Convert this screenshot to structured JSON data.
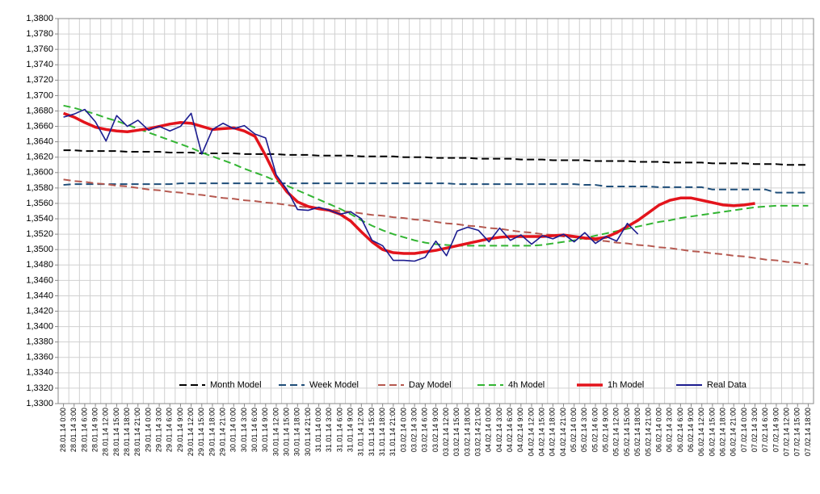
{
  "chart_data": {
    "type": "line",
    "categories": [
      "28.01.14 0:00",
      "28.01.14 3:00",
      "28.01.14 6:00",
      "28.01.14 9:00",
      "28.01.14 12:00",
      "28.01.14 15:00",
      "28.01.14 18:00",
      "28.01.14 21:00",
      "29.01.14 0:00",
      "29.01.14 3:00",
      "29.01.14 6:00",
      "29.01.14 9:00",
      "29.01.14 12:00",
      "29.01.14 15:00",
      "29.01.14 18:00",
      "29.01.14 21:00",
      "30.01.14 0:00",
      "30.01.14 3:00",
      "30.01.14 6:00",
      "30.01.14 9:00",
      "30.01.14 12:00",
      "30.01.14 15:00",
      "30.01.14 18:00",
      "30.01.14 21:00",
      "31.01.14 0:00",
      "31.01.14 3:00",
      "31.01.14 6:00",
      "31.01.14 9:00",
      "31.01.14 12:00",
      "31.01.14 15:00",
      "31.01.14 18:00",
      "31.01.14 21:00",
      "03.02.14 0:00",
      "03.02.14 3:00",
      "03.02.14 6:00",
      "03.02.14 9:00",
      "03.02.14 12:00",
      "03.02.14 15:00",
      "03.02.14 18:00",
      "03.02.14 21:00",
      "04.02.14 0:00",
      "04.02.14 3:00",
      "04.02.14 6:00",
      "04.02.14 9:00",
      "04.02.14 12:00",
      "04.02.14 15:00",
      "04.02.14 18:00",
      "04.02.14 21:00",
      "05.02.14 0:00",
      "05.02.14 3:00",
      "05.02.14 6:00",
      "05.02.14 9:00",
      "05.02.14 12:00",
      "05.02.14 15:00",
      "05.02.14 18:00",
      "05.02.14 21:00",
      "06.02.14 0:00",
      "06.02.14 3:00",
      "06.02.14 6:00",
      "06.02.14 9:00",
      "06.02.14 12:00",
      "06.02.14 15:00",
      "06.02.14 18:00",
      "06.02.14 21:00",
      "07.02.14 0:00",
      "07.02.14 3:00",
      "07.02.14 6:00",
      "07.02.14 9:00",
      "07.02.14 12:00",
      "07.02.14 15:00",
      "07.02.14 18:00"
    ],
    "ylim": [
      1.33,
      1.38
    ],
    "yticks": [
      {
        "value": 1.33,
        "label": "1,3300"
      },
      {
        "value": 1.332,
        "label": "1,3320"
      },
      {
        "value": 1.334,
        "label": "1,3340"
      },
      {
        "value": 1.336,
        "label": "1,3360"
      },
      {
        "value": 1.338,
        "label": "1,3380"
      },
      {
        "value": 1.34,
        "label": "1,3400"
      },
      {
        "value": 1.342,
        "label": "1,3420"
      },
      {
        "value": 1.344,
        "label": "1,3440"
      },
      {
        "value": 1.346,
        "label": "1,3460"
      },
      {
        "value": 1.348,
        "label": "1,3480"
      },
      {
        "value": 1.35,
        "label": "1,3500"
      },
      {
        "value": 1.352,
        "label": "1,3520"
      },
      {
        "value": 1.354,
        "label": "1,3540"
      },
      {
        "value": 1.356,
        "label": "1,3560"
      },
      {
        "value": 1.358,
        "label": "1,3580"
      },
      {
        "value": 1.36,
        "label": "1,3600"
      },
      {
        "value": 1.362,
        "label": "1,3620"
      },
      {
        "value": 1.364,
        "label": "1,3640"
      },
      {
        "value": 1.366,
        "label": "1,3660"
      },
      {
        "value": 1.368,
        "label": "1,3680"
      },
      {
        "value": 1.37,
        "label": "1,3700"
      },
      {
        "value": 1.372,
        "label": "1,3720"
      },
      {
        "value": 1.374,
        "label": "1,3740"
      },
      {
        "value": 1.376,
        "label": "1,3760"
      },
      {
        "value": 1.378,
        "label": "1,3780"
      },
      {
        "value": 1.38,
        "label": "1,3800"
      }
    ],
    "grid": true,
    "legend": "bottom",
    "series": [
      {
        "name": "Month Model",
        "color": "#000000",
        "dashed": true,
        "values": [
          1.3629,
          1.3629,
          1.3628,
          1.3628,
          1.3628,
          1.3628,
          1.3627,
          1.3627,
          1.3627,
          1.3627,
          1.3626,
          1.3626,
          1.3626,
          1.3625,
          1.3625,
          1.3625,
          1.3625,
          1.3624,
          1.3624,
          1.3624,
          1.3624,
          1.3623,
          1.3623,
          1.3623,
          1.3622,
          1.3622,
          1.3622,
          1.3622,
          1.3621,
          1.3621,
          1.3621,
          1.3621,
          1.362,
          1.362,
          1.362,
          1.3619,
          1.3619,
          1.3619,
          1.3619,
          1.3618,
          1.3618,
          1.3618,
          1.3618,
          1.3617,
          1.3617,
          1.3617,
          1.3616,
          1.3616,
          1.3616,
          1.3616,
          1.3615,
          1.3615,
          1.3615,
          1.3615,
          1.3614,
          1.3614,
          1.3614,
          1.3613,
          1.3613,
          1.3613,
          1.3613,
          1.3612,
          1.3612,
          1.3612,
          1.3612,
          1.3611,
          1.3611,
          1.3611,
          1.361,
          1.361,
          1.361
        ]
      },
      {
        "name": "Week Model",
        "color": "#1f4e79",
        "dashed": true,
        "values": [
          1.3584,
          1.3585,
          1.3585,
          1.3585,
          1.3585,
          1.3585,
          1.3585,
          1.3585,
          1.3585,
          1.3585,
          1.3585,
          1.3586,
          1.3586,
          1.3586,
          1.3586,
          1.3586,
          1.3586,
          1.3586,
          1.3586,
          1.3586,
          1.3586,
          1.3586,
          1.3586,
          1.3586,
          1.3586,
          1.3586,
          1.3586,
          1.3586,
          1.3586,
          1.3586,
          1.3586,
          1.3586,
          1.3586,
          1.3586,
          1.3586,
          1.3586,
          1.3586,
          1.3585,
          1.3585,
          1.3585,
          1.3585,
          1.3585,
          1.3585,
          1.3585,
          1.3585,
          1.3585,
          1.3585,
          1.3585,
          1.3585,
          1.3584,
          1.3584,
          1.3582,
          1.3582,
          1.3582,
          1.3582,
          1.3582,
          1.3581,
          1.3581,
          1.3581,
          1.3581,
          1.3581,
          1.3578,
          1.3578,
          1.3578,
          1.3578,
          1.3578,
          1.3578,
          1.3574,
          1.3574,
          1.3574,
          1.3574
        ]
      },
      {
        "name": "Day Model",
        "color": "#b5584f",
        "dashed": true,
        "values": [
          1.3591,
          1.3589,
          1.3588,
          1.3586,
          1.3585,
          1.3583,
          1.3582,
          1.358,
          1.3578,
          1.3577,
          1.3575,
          1.3574,
          1.3572,
          1.3571,
          1.3569,
          1.3567,
          1.3566,
          1.3564,
          1.3563,
          1.3561,
          1.356,
          1.3558,
          1.3556,
          1.3555,
          1.3553,
          1.3552,
          1.355,
          1.3549,
          1.3547,
          1.3545,
          1.3544,
          1.3542,
          1.3541,
          1.3539,
          1.3538,
          1.3536,
          1.3534,
          1.3533,
          1.3531,
          1.353,
          1.3528,
          1.3527,
          1.3525,
          1.3523,
          1.3522,
          1.352,
          1.3519,
          1.3517,
          1.3516,
          1.3514,
          1.3512,
          1.3511,
          1.3509,
          1.3508,
          1.3506,
          1.3505,
          1.3503,
          1.3502,
          1.35,
          1.3498,
          1.3497,
          1.3495,
          1.3494,
          1.3492,
          1.3491,
          1.3489,
          1.3487,
          1.3486,
          1.3484,
          1.3483,
          1.3481
        ]
      },
      {
        "name": "4h Model",
        "color": "#33b533",
        "dashed": true,
        "values": [
          1.3687,
          1.3684,
          1.368,
          1.3676,
          1.3671,
          1.3667,
          1.3662,
          1.3657,
          1.3652,
          1.3647,
          1.3642,
          1.3637,
          1.3632,
          1.3626,
          1.3621,
          1.3616,
          1.3611,
          1.3605,
          1.36,
          1.3595,
          1.3589,
          1.3583,
          1.3577,
          1.3571,
          1.3565,
          1.3559,
          1.3553,
          1.3546,
          1.3538,
          1.3531,
          1.3525,
          1.352,
          1.3516,
          1.3512,
          1.3509,
          1.3507,
          1.3506,
          1.3505,
          1.3505,
          1.3505,
          1.3505,
          1.3505,
          1.3505,
          1.3505,
          1.3505,
          1.3506,
          1.3508,
          1.351,
          1.3512,
          1.3515,
          1.3518,
          1.3521,
          1.3524,
          1.3527,
          1.353,
          1.3533,
          1.3536,
          1.3538,
          1.3541,
          1.3543,
          1.3545,
          1.3547,
          1.3549,
          1.3551,
          1.3553,
          1.3555,
          1.3556,
          1.3557,
          1.3557,
          1.3557,
          1.3557
        ]
      },
      {
        "name": "1h Model",
        "color": "#e3141c",
        "dashed": false,
        "values": [
          1.3677,
          1.3672,
          1.3665,
          1.3659,
          1.3656,
          1.3654,
          1.3653,
          1.3655,
          1.3657,
          1.366,
          1.3663,
          1.3665,
          1.3664,
          1.366,
          1.3656,
          1.3657,
          1.3658,
          1.3654,
          1.3647,
          1.3622,
          1.3594,
          1.3575,
          1.3562,
          1.3556,
          1.3553,
          1.3551,
          1.3546,
          1.3537,
          1.3523,
          1.351,
          1.35,
          1.3496,
          1.3495,
          1.3495,
          1.3497,
          1.3499,
          1.3502,
          1.3505,
          1.3508,
          1.3511,
          1.3514,
          1.3516,
          1.3517,
          1.3517,
          1.3517,
          1.3517,
          1.3518,
          1.3519,
          1.3517,
          1.3515,
          1.3514,
          1.3516,
          1.3522,
          1.353,
          1.3538,
          1.3548,
          1.3558,
          1.3564,
          1.3567,
          1.3567,
          1.3564,
          1.3561,
          1.3558,
          1.3557,
          1.3558,
          1.356,
          null,
          null,
          null,
          null,
          null
        ]
      },
      {
        "name": "Real Data",
        "color": "#1c1c8f",
        "dashed": false,
        "values": [
          1.3672,
          1.3676,
          1.3682,
          1.3666,
          1.3641,
          1.3674,
          1.366,
          1.3668,
          1.3655,
          1.366,
          1.3654,
          1.366,
          1.3677,
          1.3624,
          1.3656,
          1.3664,
          1.3657,
          1.3661,
          1.365,
          1.3645,
          1.3597,
          1.3578,
          1.3552,
          1.3551,
          1.3555,
          1.3551,
          1.3546,
          1.3549,
          1.354,
          1.3512,
          1.3505,
          1.3486,
          1.3486,
          1.3485,
          1.349,
          1.3511,
          1.3492,
          1.3524,
          1.3529,
          1.3525,
          1.351,
          1.3528,
          1.3512,
          1.3519,
          1.3507,
          1.3518,
          1.3514,
          1.352,
          1.351,
          1.3522,
          1.3508,
          1.3517,
          1.3511,
          1.3534,
          1.352,
          null,
          null,
          null,
          null,
          null,
          null,
          null,
          null,
          null,
          null,
          null,
          null,
          null,
          null,
          null,
          null
        ]
      }
    ]
  }
}
